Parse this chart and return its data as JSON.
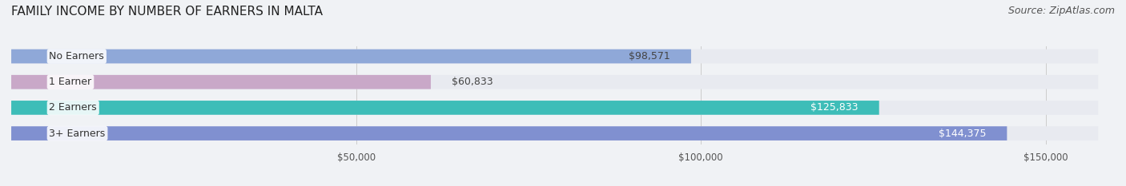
{
  "title": "FAMILY INCOME BY NUMBER OF EARNERS IN MALTA",
  "source": "Source: ZipAtlas.com",
  "categories": [
    "No Earners",
    "1 Earner",
    "2 Earners",
    "3+ Earners"
  ],
  "values": [
    98571,
    60833,
    125833,
    144375
  ],
  "bar_colors": [
    "#8fa8d8",
    "#c9a8c8",
    "#3dbdb8",
    "#8090d0"
  ],
  "label_colors": [
    "#444444",
    "#444444",
    "#ffffff",
    "#ffffff"
  ],
  "value_labels": [
    "$98,571",
    "$60,833",
    "$125,833",
    "$144,375"
  ],
  "xlim": [
    0,
    160000
  ],
  "xticks": [
    50000,
    100000,
    150000
  ],
  "xtick_labels": [
    "$50,000",
    "$100,000",
    "$150,000"
  ],
  "background_color": "#f0f2f5",
  "bar_background_color": "#e8eaf0",
  "title_fontsize": 11,
  "source_fontsize": 9,
  "label_fontsize": 9,
  "value_fontsize": 9
}
